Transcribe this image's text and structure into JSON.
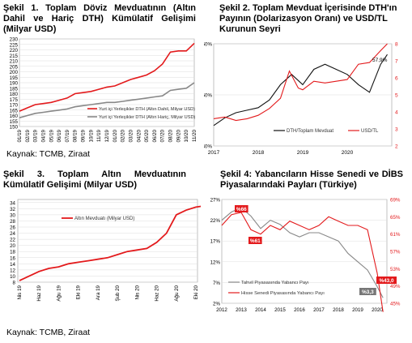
{
  "source_left": "Kaynak: TCMB, Ziraat",
  "source_bottom": "Kaynak: TCMB, Ziraat",
  "chart_data": [
    {
      "id": "c1",
      "type": "line",
      "title": "Şekil 1. Toplam Döviz Mevduatının (Altın Dahil ve Hariç DTH) Kümülatif Gelişimi (Milyar USD)",
      "ylim": [
        150,
        230
      ],
      "yticks": [
        150,
        155,
        160,
        165,
        170,
        175,
        180,
        185,
        190,
        195,
        200,
        205,
        210,
        215,
        220,
        225,
        230
      ],
      "xticks": [
        "01/19",
        "02/19",
        "03/19",
        "04/19",
        "05/19",
        "06/19",
        "07/19",
        "08/19",
        "09/19",
        "10/19",
        "11/19",
        "12/19",
        "01/20",
        "02/20",
        "03/20",
        "04/20",
        "05/20",
        "06/20",
        "07/20",
        "08/20",
        "09/20",
        "10/20",
        "11/20"
      ],
      "series": [
        {
          "name": "Yurt içi Yerleşikler DTH (Altın Dahil, Milyar USD)",
          "color": "#e31a1c",
          "values": [
            [
              0,
              164
            ],
            [
              1,
              167
            ],
            [
              2,
              170
            ],
            [
              3,
              171
            ],
            [
              4,
              172
            ],
            [
              5,
              174
            ],
            [
              6,
              176
            ],
            [
              7,
              180
            ],
            [
              8,
              181
            ],
            [
              9,
              182
            ],
            [
              10,
              184
            ],
            [
              11,
              186
            ],
            [
              12,
              187
            ],
            [
              13,
              190
            ],
            [
              14,
              193
            ],
            [
              15,
              195
            ],
            [
              16,
              197
            ],
            [
              17,
              201
            ],
            [
              18,
              207
            ],
            [
              19,
              218
            ],
            [
              20,
              219
            ],
            [
              21,
              219
            ],
            [
              22,
              226
            ]
          ]
        },
        {
          "name": "Yurt içi Yerleşikler DTH (Altın Hariç, Milyar USD)",
          "color": "#888888",
          "values": [
            [
              0,
              158
            ],
            [
              1,
              160
            ],
            [
              2,
              162
            ],
            [
              3,
              163
            ],
            [
              4,
              164
            ],
            [
              5,
              165
            ],
            [
              6,
              166
            ],
            [
              7,
              168
            ],
            [
              8,
              169
            ],
            [
              9,
              170
            ],
            [
              10,
              171
            ],
            [
              11,
              172
            ],
            [
              12,
              172
            ],
            [
              13,
              173
            ],
            [
              14,
              174
            ],
            [
              15,
              175
            ],
            [
              16,
              176
            ],
            [
              17,
              177
            ],
            [
              18,
              178
            ],
            [
              19,
              183
            ],
            [
              20,
              184
            ],
            [
              21,
              185
            ],
            [
              22,
              190
            ]
          ]
        }
      ]
    },
    {
      "id": "c2",
      "type": "line",
      "title": "Şekil 2. Toplam Mevduat İçerisinde DTH'ın Payının (Dolarizasyon Oranı) ve USD/TL Kurunun Seyri",
      "ylim_left": [
        40,
        60
      ],
      "yticks_left": [
        "40%",
        "50%",
        "60%"
      ],
      "ylim_right": [
        2,
        8
      ],
      "yticks_right": [
        2,
        3,
        4,
        5,
        6,
        7,
        8
      ],
      "xticks": [
        "2017",
        "2018",
        "2019",
        "2020"
      ],
      "annotation": "57,9%",
      "series": [
        {
          "name": "DTH/Toplam Mevduat",
          "color": "#111111",
          "axis": "left",
          "values": [
            [
              2017.0,
              44
            ],
            [
              2017.25,
              45.5
            ],
            [
              2017.5,
              46.5
            ],
            [
              2017.75,
              47
            ],
            [
              2018.0,
              47.5
            ],
            [
              2018.25,
              49
            ],
            [
              2018.5,
              52
            ],
            [
              2018.75,
              54
            ],
            [
              2019.0,
              52
            ],
            [
              2019.25,
              55
            ],
            [
              2019.5,
              56
            ],
            [
              2019.75,
              55
            ],
            [
              2020.0,
              54
            ],
            [
              2020.25,
              52
            ],
            [
              2020.5,
              50.5
            ],
            [
              2020.75,
              56
            ],
            [
              2020.9,
              57.9
            ]
          ]
        },
        {
          "name": "USD/TL",
          "color": "#e31a1c",
          "axis": "right",
          "values": [
            [
              2017.0,
              3.6
            ],
            [
              2017.25,
              3.7
            ],
            [
              2017.5,
              3.5
            ],
            [
              2017.75,
              3.6
            ],
            [
              2018.0,
              3.8
            ],
            [
              2018.25,
              4.2
            ],
            [
              2018.5,
              4.8
            ],
            [
              2018.7,
              6.4
            ],
            [
              2018.9,
              5.4
            ],
            [
              2019.0,
              5.3
            ],
            [
              2019.25,
              5.8
            ],
            [
              2019.5,
              5.7
            ],
            [
              2019.75,
              5.8
            ],
            [
              2020.0,
              5.9
            ],
            [
              2020.25,
              6.8
            ],
            [
              2020.5,
              6.9
            ],
            [
              2020.75,
              7.6
            ],
            [
              2020.9,
              8.0
            ]
          ]
        }
      ]
    },
    {
      "id": "c3",
      "type": "line",
      "title": "Şekil 3. Toplam Altın Mevduatının Kümülatif Gelişimi (Milyar USD)",
      "ylim": [
        8,
        35
      ],
      "yticks": [
        8,
        10,
        12,
        14,
        16,
        18,
        20,
        22,
        24,
        26,
        28,
        30,
        32,
        34
      ],
      "xticks": [
        "Nis 19",
        "Haz 19",
        "Ağu 19",
        "Eki 19",
        "Ara 19",
        "Şub 20",
        "Nis 20",
        "Haz 20",
        "Ağu 20",
        "Eki 20"
      ],
      "series": [
        {
          "name": "Altın Mevduatı (Milyar USD)",
          "color": "#e31a1c",
          "values": [
            [
              0,
              8.5
            ],
            [
              0.5,
              10
            ],
            [
              1,
              11.5
            ],
            [
              1.5,
              12.5
            ],
            [
              2,
              13
            ],
            [
              2.5,
              14
            ],
            [
              3,
              14.5
            ],
            [
              3.5,
              15
            ],
            [
              4,
              15.5
            ],
            [
              4.5,
              16
            ],
            [
              5,
              17
            ],
            [
              5.5,
              18
            ],
            [
              6,
              18.5
            ],
            [
              6.5,
              19
            ],
            [
              7,
              21
            ],
            [
              7.5,
              24
            ],
            [
              8,
              30
            ],
            [
              8.5,
              31.5
            ],
            [
              9,
              32.5
            ],
            [
              9.5,
              33
            ],
            [
              10,
              33.5
            ]
          ]
        }
      ]
    },
    {
      "id": "c4",
      "type": "line",
      "title": "Şekil 4: Yabancıların Hisse Senedi ve DİBS Piyasalarındaki Payları (Türkiye)",
      "yticks_left": [
        "2%",
        "7%",
        "12%",
        "17%",
        "22%",
        "27%"
      ],
      "ylim_left": [
        2,
        27
      ],
      "yticks_right": [
        "45%",
        "49%",
        "53%",
        "57%",
        "61%",
        "65%",
        "69%"
      ],
      "ylim_right": [
        45,
        69
      ],
      "xticks": [
        "2012",
        "2013",
        "2014",
        "2015",
        "2016",
        "2017",
        "2018",
        "2019",
        "2020"
      ],
      "labels": [
        "%66",
        "%61",
        "%3,3",
        "%43,0"
      ],
      "series": [
        {
          "name": "Tahvil Piyasasında Yabancı Payı",
          "color": "#888888",
          "axis": "left",
          "values": [
            [
              2012.0,
              22
            ],
            [
              2012.5,
              24
            ],
            [
              2013.0,
              25
            ],
            [
              2013.5,
              23
            ],
            [
              2014.0,
              20
            ],
            [
              2014.5,
              22
            ],
            [
              2015.0,
              21
            ],
            [
              2015.5,
              19
            ],
            [
              2016.0,
              18
            ],
            [
              2016.5,
              19
            ],
            [
              2017.0,
              19
            ],
            [
              2017.5,
              18
            ],
            [
              2018.0,
              17
            ],
            [
              2018.5,
              14
            ],
            [
              2019.0,
              12
            ],
            [
              2019.5,
              10
            ],
            [
              2020.0,
              6
            ],
            [
              2020.3,
              3.3
            ]
          ]
        },
        {
          "name": "Hisse Senedi Piyasasında Yabancı Payı",
          "color": "#e31a1c",
          "axis": "right",
          "values": [
            [
              2012.0,
              63
            ],
            [
              2012.5,
              65.5
            ],
            [
              2013.0,
              66
            ],
            [
              2013.5,
              62
            ],
            [
              2014.0,
              61
            ],
            [
              2014.5,
              63
            ],
            [
              2015.0,
              62
            ],
            [
              2015.5,
              64
            ],
            [
              2016.0,
              63
            ],
            [
              2016.5,
              62
            ],
            [
              2017.0,
              63
            ],
            [
              2017.5,
              65
            ],
            [
              2018.0,
              64
            ],
            [
              2018.5,
              63
            ],
            [
              2019.0,
              63
            ],
            [
              2019.5,
              62
            ],
            [
              2020.0,
              52
            ],
            [
              2020.3,
              43.0
            ]
          ]
        }
      ]
    }
  ]
}
